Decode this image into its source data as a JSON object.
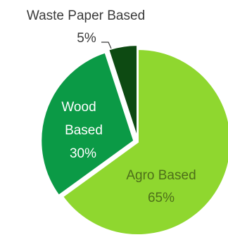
{
  "chart_data": {
    "type": "pie",
    "slices": [
      {
        "name": "Agro Based",
        "value": 65,
        "label_text": "Agro Based",
        "percent_text": "65%",
        "color": "#8fd72f",
        "label_color": "#4d6f19",
        "label_placement": "inside"
      },
      {
        "name": "Wood Based",
        "value": 30,
        "label_text": "Wood Based",
        "percent_text": "30%",
        "color": "#0b9a46",
        "label_color": "#ffffff",
        "label_placement": "inside"
      },
      {
        "name": "Waste Paper Based",
        "value": 5,
        "label_text": "Waste Paper Based",
        "percent_text": "5%",
        "color": "#0d4a12",
        "label_color": "#3a3a3a",
        "label_placement": "outside"
      }
    ],
    "start_angle_deg": 0,
    "direction": "clockwise",
    "legend": "none",
    "title": ""
  }
}
